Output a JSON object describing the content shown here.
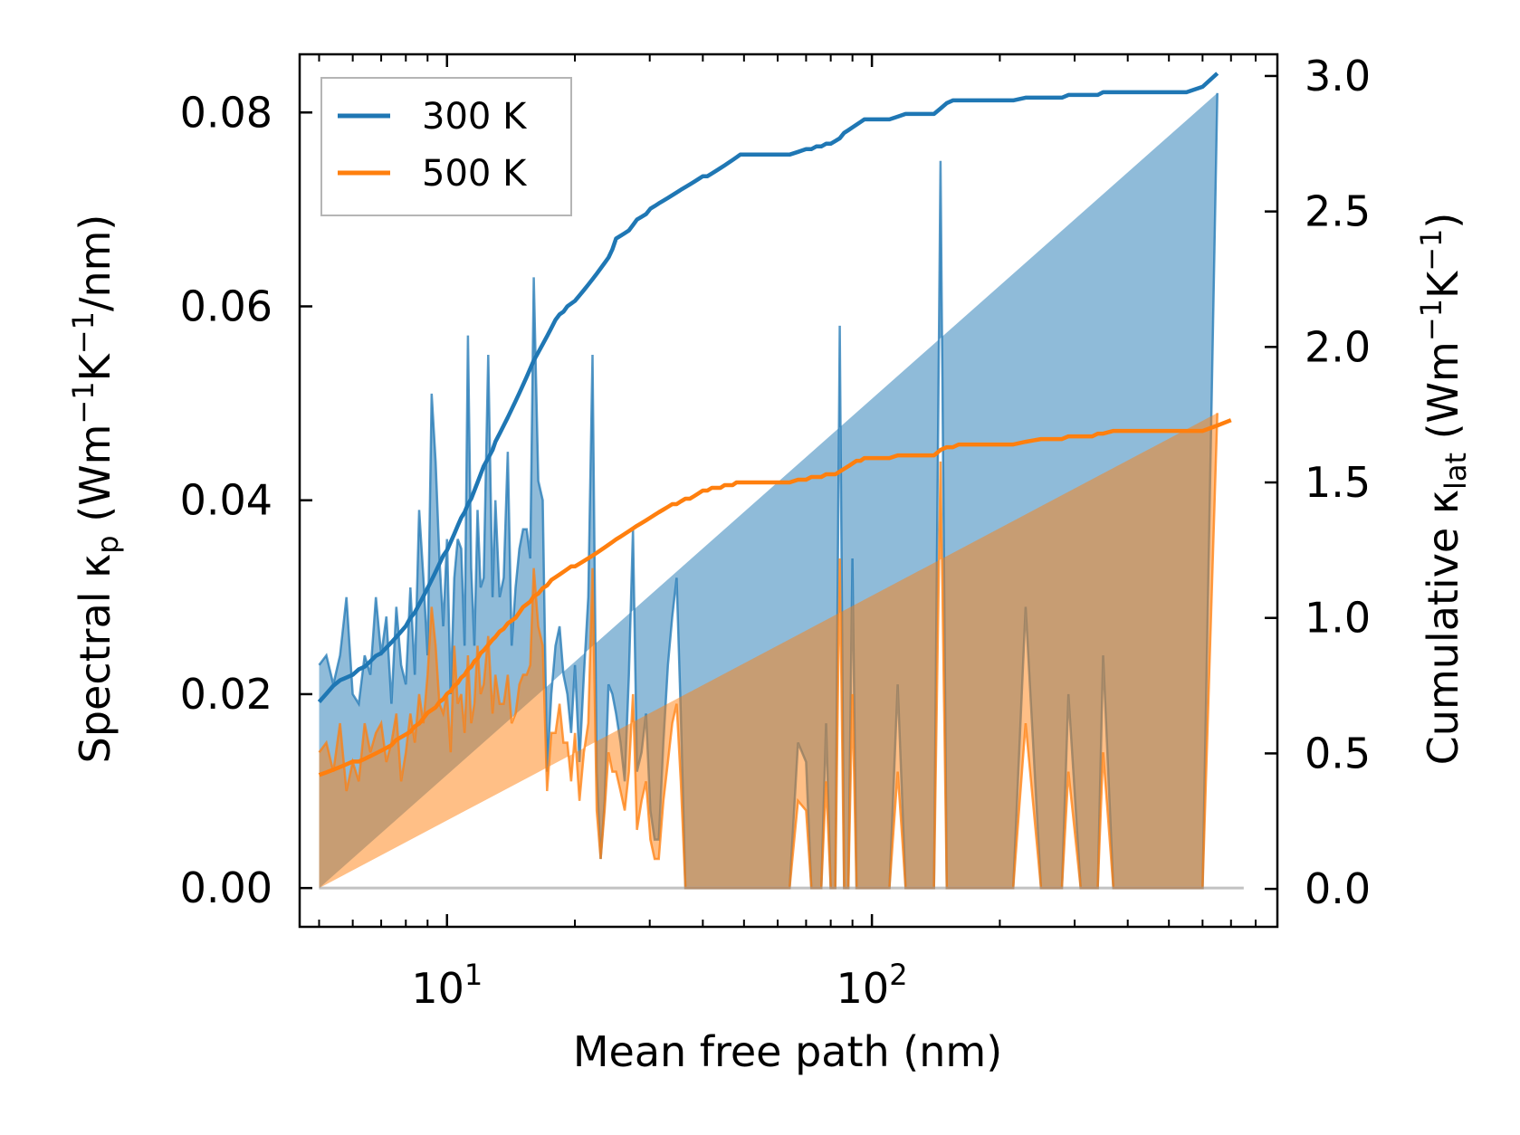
{
  "chart_data": {
    "type": "line+area",
    "title": "",
    "xlabel": "Mean free path (nm)",
    "ylabel_left": {
      "main": "Spectral κ",
      "sub": "p",
      "units_pre": " (Wm",
      "sup1": "−1",
      "units_mid": "K",
      "sup2": "−1",
      "units_post": "/nm)"
    },
    "ylabel_right": {
      "main": "Cumulative κ",
      "sub": "lat",
      "units_pre": " (Wm",
      "sup1": "−1",
      "units_mid": "K",
      "sup2": "−1",
      "units_post": ")"
    },
    "xscale": "log",
    "xlim": [
      4.5,
      900
    ],
    "ylim_left": [
      -0.004,
      0.086
    ],
    "ylim_right": [
      -0.14,
      3.08
    ],
    "x_ticks": [
      {
        "value": 10,
        "base": "10",
        "exp": "1"
      },
      {
        "value": 100,
        "base": "10",
        "exp": "2"
      }
    ],
    "y_ticks_left": [
      "0.00",
      "0.02",
      "0.04",
      "0.06",
      "0.08"
    ],
    "y_ticks_right": [
      "0.0",
      "0.5",
      "1.0",
      "1.5",
      "2.0",
      "2.5",
      "3.0"
    ],
    "legend": {
      "position": "top-left",
      "entries": [
        {
          "label": "300 K",
          "color": "#1f77b4"
        },
        {
          "label": "500 K",
          "color": "#ff7f0e"
        }
      ]
    },
    "x": [
      5.0,
      5.2,
      5.4,
      5.6,
      5.8,
      6.0,
      6.2,
      6.4,
      6.6,
      6.8,
      7.0,
      7.2,
      7.4,
      7.6,
      7.8,
      8.0,
      8.2,
      8.4,
      8.6,
      8.8,
      9.0,
      9.2,
      9.4,
      9.6,
      9.8,
      10.0,
      10.2,
      10.4,
      10.6,
      10.8,
      11.0,
      11.2,
      11.4,
      11.6,
      11.8,
      12.0,
      12.2,
      12.5,
      12.8,
      13.0,
      13.3,
      13.6,
      13.9,
      14.2,
      14.5,
      14.8,
      15.1,
      15.4,
      15.7,
      16.0,
      16.4,
      16.8,
      17.2,
      17.6,
      18.0,
      18.4,
      18.8,
      19.2,
      19.6,
      20.0,
      20.5,
      21.0,
      21.5,
      22.0,
      22.5,
      23.0,
      23.5,
      24.0,
      24.5,
      25.0,
      25.6,
      26.2,
      26.8,
      27.4,
      28.0,
      28.7,
      29.4,
      30.1,
      30.8,
      31.5,
      32.3,
      33.1,
      33.9,
      34.7,
      35.5,
      36.4,
      37.3,
      38.2,
      39.1,
      40.0,
      41.0,
      42.0,
      43.0,
      44.0,
      45.0,
      46.0,
      47.0,
      48.0,
      49.0,
      50.0,
      52.0,
      55.0,
      58.0,
      61.0,
      64.0,
      67.0,
      70.0,
      72.0,
      74.0,
      76.0,
      78.0,
      80.0,
      82.0,
      84.0,
      86.0,
      88.0,
      90.0,
      92.0,
      94.0,
      96.0,
      100.0,
      105.0,
      110.0,
      115.0,
      120.0,
      125.0,
      130.0,
      135.0,
      140.0,
      145.0,
      150.0,
      155.0,
      160.0,
      165.0,
      170.0,
      175.0,
      180.0,
      190.0,
      200.0,
      215.0,
      230.0,
      250.0,
      270.0,
      280.0,
      290.0,
      310.0,
      330.0,
      340.0,
      350.0,
      370.0,
      390.0,
      400.0,
      410.0,
      450.0,
      500.0,
      550.0,
      600.0,
      650.0,
      700.0,
      720.0,
      740.0,
      750.0
    ],
    "series": [
      {
        "name": "300 K",
        "color": "#1f77b4",
        "spectral": [
          0.023,
          0.024,
          0.021,
          0.024,
          0.03,
          0.02,
          0.019,
          0.024,
          0.022,
          0.03,
          0.024,
          0.028,
          0.019,
          0.029,
          0.023,
          0.021,
          0.031,
          0.022,
          0.039,
          0.032,
          0.024,
          0.051,
          0.044,
          0.034,
          0.027,
          0.036,
          0.02,
          0.032,
          0.036,
          0.035,
          0.025,
          0.057,
          0.033,
          0.025,
          0.039,
          0.031,
          0.032,
          0.055,
          0.03,
          0.04,
          0.03,
          0.032,
          0.045,
          0.025,
          0.031,
          0.035,
          0.037,
          0.037,
          0.034,
          0.063,
          0.042,
          0.04,
          0.012,
          0.02,
          0.025,
          0.027,
          0.022,
          0.02,
          0.016,
          0.023,
          0.013,
          0.022,
          0.03,
          0.055,
          0.012,
          0.003,
          0.009,
          0.021,
          0.02,
          0.018,
          0.015,
          0.011,
          0.022,
          0.037,
          0.012,
          0.014,
          0.018,
          0.008,
          0.005,
          0.005,
          0.015,
          0.023,
          0.028,
          0.032,
          0.018,
          0.0,
          0.0,
          0.0,
          0.0,
          0.0,
          0.0,
          0.0,
          0.0,
          0.0,
          0.0,
          0.0,
          0.0,
          0.0,
          0.0,
          0.0,
          0.0,
          0.0,
          0.0,
          0.0,
          0.0,
          0.015,
          0.013,
          0.0,
          0.0,
          0.0,
          0.017,
          0.0,
          0.0,
          0.058,
          0.0,
          0.0,
          0.034,
          0.0,
          0.0,
          0.0,
          0.0,
          0.0,
          0.0,
          0.021,
          0.0,
          0.0,
          0.0,
          0.0,
          0.0,
          0.075,
          0.0,
          0.0,
          0.0,
          0.0,
          0.0,
          0.0,
          0.0,
          0.0,
          0.0,
          0.0,
          0.029,
          0.0,
          0.0,
          0.0,
          0.02,
          0.0,
          0.0,
          0.0,
          0.024,
          0.0,
          0.0,
          0.0,
          0.0,
          0.0,
          0.0,
          0.0,
          0.0,
          0.082
        ],
        "cumulative": [
          0.69,
          0.72,
          0.75,
          0.77,
          0.78,
          0.79,
          0.81,
          0.82,
          0.84,
          0.86,
          0.87,
          0.89,
          0.91,
          0.93,
          0.95,
          0.97,
          1.0,
          1.02,
          1.05,
          1.08,
          1.11,
          1.14,
          1.17,
          1.2,
          1.23,
          1.25,
          1.28,
          1.31,
          1.34,
          1.37,
          1.39,
          1.42,
          1.44,
          1.47,
          1.5,
          1.53,
          1.56,
          1.59,
          1.62,
          1.65,
          1.68,
          1.71,
          1.74,
          1.77,
          1.8,
          1.83,
          1.86,
          1.89,
          1.92,
          1.95,
          1.98,
          2.01,
          2.04,
          2.07,
          2.1,
          2.12,
          2.13,
          2.15,
          2.16,
          2.17,
          2.19,
          2.21,
          2.23,
          2.25,
          2.27,
          2.29,
          2.31,
          2.33,
          2.36,
          2.4,
          2.41,
          2.42,
          2.43,
          2.45,
          2.47,
          2.48,
          2.49,
          2.51,
          2.52,
          2.53,
          2.54,
          2.55,
          2.56,
          2.57,
          2.58,
          2.59,
          2.6,
          2.61,
          2.62,
          2.63,
          2.63,
          2.64,
          2.65,
          2.66,
          2.67,
          2.68,
          2.69,
          2.7,
          2.71,
          2.71,
          2.71,
          2.71,
          2.71,
          2.71,
          2.71,
          2.72,
          2.73,
          2.73,
          2.74,
          2.74,
          2.75,
          2.75,
          2.76,
          2.77,
          2.79,
          2.8,
          2.81,
          2.82,
          2.83,
          2.84,
          2.84,
          2.84,
          2.84,
          2.85,
          2.86,
          2.86,
          2.86,
          2.86,
          2.86,
          2.88,
          2.9,
          2.91,
          2.91,
          2.91,
          2.91,
          2.91,
          2.91,
          2.91,
          2.91,
          2.91,
          2.92,
          2.92,
          2.92,
          2.92,
          2.93,
          2.93,
          2.93,
          2.93,
          2.94,
          2.94,
          2.94,
          2.94,
          2.94,
          2.94,
          2.94,
          2.94,
          2.96,
          3.01
        ],
        "cumulative_scale_note": "right axis units"
      },
      {
        "name": "500 K",
        "color": "#ff7f0e",
        "spectral": [
          0.014,
          0.015,
          0.012,
          0.017,
          0.01,
          0.013,
          0.011,
          0.017,
          0.014,
          0.016,
          0.017,
          0.013,
          0.015,
          0.018,
          0.011,
          0.014,
          0.018,
          0.015,
          0.02,
          0.017,
          0.022,
          0.029,
          0.025,
          0.019,
          0.018,
          0.02,
          0.014,
          0.025,
          0.019,
          0.02,
          0.016,
          0.024,
          0.017,
          0.019,
          0.025,
          0.02,
          0.021,
          0.026,
          0.018,
          0.022,
          0.019,
          0.019,
          0.022,
          0.017,
          0.018,
          0.021,
          0.022,
          0.022,
          0.023,
          0.033,
          0.027,
          0.025,
          0.01,
          0.016,
          0.016,
          0.019,
          0.015,
          0.015,
          0.011,
          0.016,
          0.009,
          0.014,
          0.017,
          0.033,
          0.008,
          0.003,
          0.008,
          0.014,
          0.012,
          0.012,
          0.01,
          0.008,
          0.012,
          0.02,
          0.006,
          0.009,
          0.011,
          0.005,
          0.003,
          0.003,
          0.009,
          0.013,
          0.017,
          0.019,
          0.011,
          0.0,
          0.0,
          0.0,
          0.0,
          0.0,
          0.0,
          0.0,
          0.0,
          0.0,
          0.0,
          0.0,
          0.0,
          0.0,
          0.0,
          0.0,
          0.0,
          0.0,
          0.0,
          0.0,
          0.0,
          0.009,
          0.008,
          0.0,
          0.0,
          0.0,
          0.011,
          0.0,
          0.0,
          0.034,
          0.0,
          0.0,
          0.02,
          0.0,
          0.0,
          0.0,
          0.0,
          0.0,
          0.0,
          0.012,
          0.0,
          0.0,
          0.0,
          0.0,
          0.0,
          0.044,
          0.0,
          0.0,
          0.0,
          0.0,
          0.0,
          0.0,
          0.0,
          0.0,
          0.0,
          0.0,
          0.017,
          0.0,
          0.0,
          0.0,
          0.012,
          0.0,
          0.0,
          0.0,
          0.014,
          0.0,
          0.0,
          0.0,
          0.0,
          0.0,
          0.0,
          0.0,
          0.0,
          0.049
        ],
        "cumulative": [
          0.42,
          0.43,
          0.44,
          0.45,
          0.46,
          0.47,
          0.47,
          0.48,
          0.49,
          0.5,
          0.51,
          0.52,
          0.53,
          0.55,
          0.56,
          0.57,
          0.58,
          0.6,
          0.61,
          0.63,
          0.65,
          0.66,
          0.67,
          0.69,
          0.7,
          0.72,
          0.73,
          0.75,
          0.76,
          0.78,
          0.79,
          0.81,
          0.82,
          0.84,
          0.85,
          0.87,
          0.88,
          0.9,
          0.92,
          0.93,
          0.95,
          0.96,
          0.98,
          0.99,
          1.0,
          1.02,
          1.04,
          1.05,
          1.06,
          1.08,
          1.09,
          1.11,
          1.12,
          1.14,
          1.15,
          1.16,
          1.17,
          1.18,
          1.19,
          1.19,
          1.2,
          1.21,
          1.22,
          1.23,
          1.24,
          1.25,
          1.26,
          1.27,
          1.28,
          1.29,
          1.3,
          1.31,
          1.32,
          1.33,
          1.34,
          1.35,
          1.36,
          1.37,
          1.38,
          1.39,
          1.4,
          1.41,
          1.42,
          1.42,
          1.43,
          1.44,
          1.44,
          1.45,
          1.46,
          1.47,
          1.47,
          1.48,
          1.48,
          1.48,
          1.49,
          1.49,
          1.49,
          1.5,
          1.5,
          1.5,
          1.5,
          1.5,
          1.5,
          1.5,
          1.5,
          1.51,
          1.51,
          1.52,
          1.52,
          1.52,
          1.53,
          1.53,
          1.53,
          1.54,
          1.55,
          1.56,
          1.57,
          1.58,
          1.58,
          1.59,
          1.59,
          1.59,
          1.59,
          1.6,
          1.6,
          1.6,
          1.6,
          1.6,
          1.6,
          1.62,
          1.63,
          1.63,
          1.64,
          1.64,
          1.64,
          1.64,
          1.64,
          1.64,
          1.64,
          1.64,
          1.65,
          1.66,
          1.66,
          1.66,
          1.67,
          1.67,
          1.67,
          1.68,
          1.68,
          1.69,
          1.69,
          1.69,
          1.69,
          1.69,
          1.69,
          1.69,
          1.69,
          1.71,
          1.73
        ]
      }
    ]
  }
}
